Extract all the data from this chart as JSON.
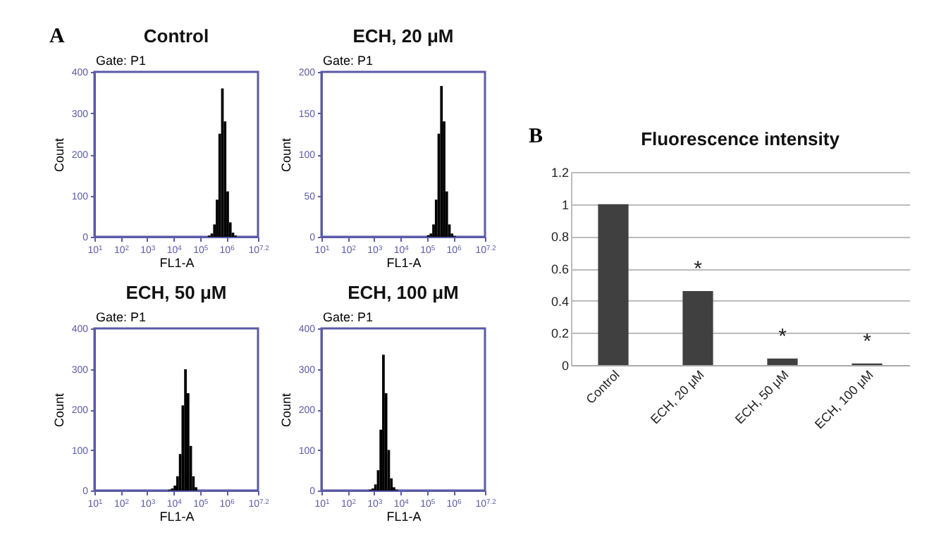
{
  "chart_data": [
    {
      "type": "histogram",
      "title": "Control",
      "xlabel": "FL1-A",
      "ylabel": "Count",
      "log": "x",
      "color": "#000000",
      "bins": [
        199500,
        251200,
        316200,
        398100,
        501200,
        631000,
        794300,
        1000000,
        1259000,
        1585000,
        1995000,
        2512000
      ],
      "values": [
        3,
        8,
        30,
        90,
        250,
        360,
        280,
        110,
        35,
        10,
        3
      ],
      "xlim": [
        10,
        15850000
      ],
      "xticks": [
        {
          "value": 10,
          "label": "10$^{1}$"
        },
        {
          "value": 100,
          "label": "10$^{2}$"
        },
        {
          "value": 1000,
          "label": "10$^{3}$"
        },
        {
          "value": 10000,
          "label": "10$^{4}$"
        },
        {
          "value": 100000,
          "label": "10$^{5}$"
        },
        {
          "value": 1000000,
          "label": "10$^{6}$"
        },
        {
          "value": 15850000,
          "label": "10$^{7.2}$"
        }
      ],
      "ylim": [
        0,
        400
      ],
      "yticks": [
        0,
        100,
        200,
        300,
        400
      ],
      "annotations": [
        "A",
        "Gate: P1"
      ]
    },
    {
      "type": "histogram",
      "title": "ECH, 20 μM",
      "xlabel": "FL1-A",
      "ylabel": "Count",
      "log": "x",
      "color": "#000000",
      "bins": [
        100000,
        125900,
        158500,
        199500,
        251200,
        316200,
        398100,
        501200,
        631000,
        794300,
        1000000,
        1259000
      ],
      "values": [
        2,
        4,
        15,
        45,
        125,
        183,
        140,
        55,
        15,
        4,
        1
      ],
      "xlim": [
        10,
        15850000
      ],
      "xticks": [
        {
          "value": 10,
          "label": "10$^{1}$"
        },
        {
          "value": 100,
          "label": "10$^{2}$"
        },
        {
          "value": 1000,
          "label": "10$^{3}$"
        },
        {
          "value": 10000,
          "label": "10$^{4}$"
        },
        {
          "value": 100000,
          "label": "10$^{5}$"
        },
        {
          "value": 1000000,
          "label": "10$^{6}$"
        },
        {
          "value": 15850000,
          "label": "10$^{7.2}$"
        }
      ],
      "ylim": [
        0,
        200
      ],
      "yticks": [
        0,
        50,
        100,
        150,
        200
      ],
      "annotations": [
        "Gate: P1"
      ]
    },
    {
      "type": "histogram",
      "title": "ECH, 50 μM",
      "xlabel": "FL1-A",
      "ylabel": "Count",
      "log": "x",
      "color": "#000000",
      "bins": [
        6310,
        7943,
        10000,
        12590,
        15850,
        19950,
        25120,
        31620,
        39810,
        50120,
        63100,
        79430
      ],
      "values": [
        2,
        5,
        12,
        35,
        90,
        210,
        299,
        240,
        110,
        35,
        8
      ],
      "xlim": [
        10,
        15850000
      ],
      "xticks": [
        {
          "value": 10,
          "label": "10$^{1}$"
        },
        {
          "value": 100,
          "label": "10$^{2}$"
        },
        {
          "value": 1000,
          "label": "10$^{3}$"
        },
        {
          "value": 10000,
          "label": "10$^{4}$"
        },
        {
          "value": 100000,
          "label": "10$^{5}$"
        },
        {
          "value": 1000000,
          "label": "10$^{6}$"
        },
        {
          "value": 15850000,
          "label": "10$^{7.2}$"
        }
      ],
      "ylim": [
        0,
        400
      ],
      "yticks": [
        0,
        100,
        200,
        300,
        400
      ],
      "annotations": [
        "Gate: P1"
      ]
    },
    {
      "type": "histogram",
      "title": "ECH, 100 μM",
      "xlabel": "FL1-A",
      "ylabel": "Count",
      "log": "x",
      "color": "#000000",
      "bins": [
        631,
        794.3,
        1000,
        1259,
        1585,
        1995,
        2512,
        3162,
        3981,
        5012,
        6310,
        7943
      ],
      "values": [
        2,
        5,
        15,
        50,
        150,
        335,
        240,
        100,
        30,
        8,
        2
      ],
      "xlim": [
        10,
        15850000
      ],
      "xticks": [
        {
          "value": 10,
          "label": "10$^{1}$"
        },
        {
          "value": 100,
          "label": "10$^{2}$"
        },
        {
          "value": 1000,
          "label": "10$^{3}$"
        },
        {
          "value": 10000,
          "label": "10$^{4}$"
        },
        {
          "value": 100000,
          "label": "10$^{5}$"
        },
        {
          "value": 1000000,
          "label": "10$^{6}$"
        },
        {
          "value": 15850000,
          "label": "10$^{7.2}$"
        }
      ],
      "ylim": [
        0,
        400
      ],
      "yticks": [
        0,
        100,
        200,
        300,
        400
      ],
      "annotations": [
        "Gate: P1"
      ]
    },
    {
      "type": "bar",
      "title": "Fluorescence intensity",
      "categories": [
        "Control",
        "ECH, 20 μM",
        "ECH, 50 μM",
        "ECH, 100 μM"
      ],
      "values": [
        1,
        0.46,
        0.04,
        0.01
      ],
      "color": "#404040",
      "ylim": [
        0,
        1.2
      ],
      "yticks": [
        0,
        0.2,
        0.4,
        0.6,
        0.8,
        1,
        1.2
      ],
      "grid": "y",
      "annotations": [
        "B",
        {
          "text": "*",
          "x": "ECH, 20 μM",
          "y": 0.46
        },
        {
          "text": "*",
          "x": "ECH, 50 μM",
          "y": 0.04
        },
        {
          "text": "*",
          "x": "ECH, 100 μM",
          "y": 0.01
        }
      ]
    }
  ]
}
